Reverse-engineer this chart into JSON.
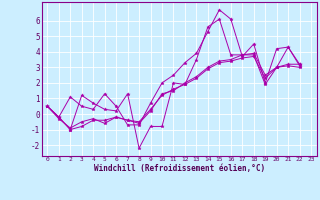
{
  "xlabel": "Windchill (Refroidissement éolien,°C)",
  "bg_color": "#cceeff",
  "line_color": "#aa00aa",
  "grid_color": "#ffffff",
  "xlim": [
    -0.5,
    23.5
  ],
  "ylim": [
    -2.7,
    7.2
  ],
  "xticks": [
    0,
    1,
    2,
    3,
    4,
    5,
    6,
    7,
    8,
    9,
    10,
    11,
    12,
    13,
    14,
    15,
    16,
    17,
    18,
    19,
    20,
    21,
    22,
    23
  ],
  "yticks": [
    -2,
    -1,
    0,
    1,
    2,
    3,
    4,
    5,
    6
  ],
  "lines": [
    {
      "x": [
        0,
        1,
        2,
        3,
        4,
        5,
        6,
        7,
        8,
        9,
        10,
        11,
        12,
        13,
        14,
        15,
        16,
        17,
        18,
        19,
        20,
        21,
        22
      ],
      "y": [
        0.5,
        -0.2,
        1.1,
        0.5,
        0.3,
        1.3,
        0.5,
        -0.7,
        -0.7,
        0.7,
        2.0,
        2.5,
        3.3,
        3.9,
        5.3,
        6.7,
        6.1,
        3.7,
        4.5,
        2.0,
        4.2,
        4.3,
        3.2
      ]
    },
    {
      "x": [
        0,
        1,
        2,
        3,
        4,
        5,
        6,
        7,
        8,
        9,
        10,
        11,
        12,
        13,
        14,
        15,
        16,
        17,
        18,
        19,
        20,
        21,
        22
      ],
      "y": [
        0.5,
        -0.2,
        -1.0,
        1.2,
        0.7,
        0.3,
        0.2,
        1.3,
        -2.2,
        -0.8,
        -0.8,
        2.0,
        1.9,
        3.5,
        5.6,
        6.1,
        3.8,
        3.8,
        3.8,
        1.9,
        3.0,
        4.3,
        3.1
      ]
    },
    {
      "x": [
        0,
        1,
        2,
        3,
        4,
        5,
        6,
        7,
        8,
        9,
        10,
        11,
        12,
        13,
        14,
        15,
        16,
        17,
        18,
        19,
        20,
        21,
        22
      ],
      "y": [
        0.5,
        -0.3,
        -0.9,
        -0.5,
        -0.3,
        -0.6,
        -0.2,
        -0.4,
        -0.6,
        0.2,
        1.3,
        1.5,
        2.0,
        2.4,
        3.0,
        3.4,
        3.5,
        3.8,
        3.9,
        2.5,
        3.0,
        3.2,
        3.2
      ]
    },
    {
      "x": [
        0,
        1,
        2,
        3,
        4,
        5,
        6,
        7,
        8,
        9,
        10,
        11,
        12,
        13,
        14,
        15,
        16,
        17,
        18,
        19,
        20,
        21,
        22
      ],
      "y": [
        0.5,
        -0.2,
        -1.0,
        -0.8,
        -0.4,
        -0.4,
        -0.2,
        -0.4,
        -0.5,
        0.3,
        1.2,
        1.6,
        1.9,
        2.3,
        2.9,
        3.3,
        3.4,
        3.6,
        3.7,
        2.3,
        3.0,
        3.1,
        3.0
      ]
    }
  ]
}
